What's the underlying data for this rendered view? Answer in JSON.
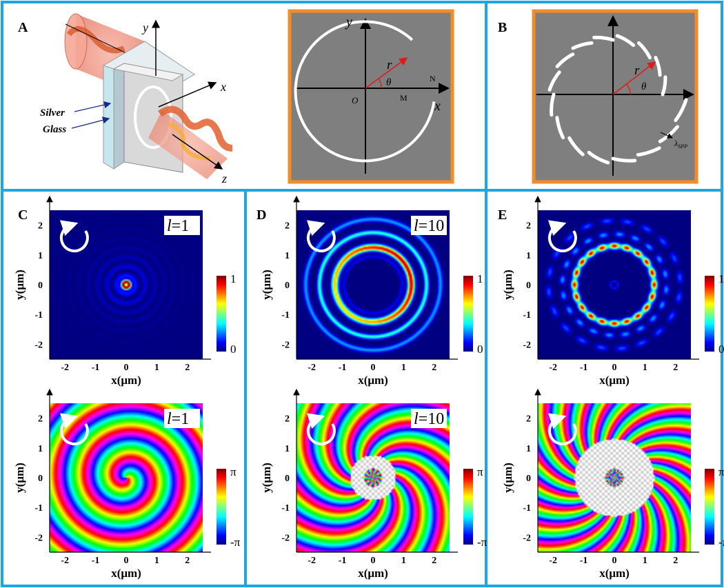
{
  "panels": {
    "A": {
      "label": "A",
      "schematic": {
        "axis_labels": {
          "x": "x",
          "y": "y",
          "z": "z"
        },
        "layer_labels": [
          "Silver",
          "Glass"
        ]
      },
      "inset": {
        "axis_labels": {
          "x": "x",
          "y": "y"
        },
        "origin": "O",
        "radius_label": "r",
        "angle_label": "θ",
        "points": [
          "M",
          "N"
        ]
      }
    },
    "B": {
      "label": "B",
      "radius_label": "r",
      "angle_label": "θ",
      "period_label": "λ",
      "period_sub": "SPP"
    },
    "C": {
      "label": "C",
      "top_tag": "l",
      "top_tag_value": "=1",
      "bottom_tag": "l",
      "bottom_tag_value": "=1"
    },
    "D": {
      "label": "D",
      "top_tag": "l",
      "top_tag_value": "=10",
      "bottom_tag": "l",
      "bottom_tag_value": "=10"
    },
    "E": {
      "label": "E"
    }
  },
  "axes": {
    "xlabel": "x(μm)",
    "ylabel": "y(μm)",
    "ticks": [
      "-2",
      "-1",
      "0",
      "1",
      "2"
    ]
  },
  "colorbars": {
    "intensity": {
      "max": "1",
      "min": "0"
    },
    "phase": {
      "max": "π",
      "min": "-π"
    }
  },
  "chart_data": [
    {
      "type": "heatmap",
      "panel": "C",
      "quantity": "intensity",
      "l": 1,
      "xlim": [
        -2.5,
        2.5
      ],
      "ylim": [
        -2.5,
        2.5
      ],
      "clim": [
        0,
        1
      ],
      "main_ring_radius": 0.1
    },
    {
      "type": "heatmap",
      "panel": "D",
      "quantity": "intensity",
      "l": 10,
      "xlim": [
        -2.5,
        2.5
      ],
      "ylim": [
        -2.5,
        2.5
      ],
      "clim": [
        0,
        1
      ],
      "main_ring_radius": 1.25
    },
    {
      "type": "heatmap",
      "panel": "E",
      "quantity": "intensity",
      "xlim": [
        -2.5,
        2.5
      ],
      "ylim": [
        -2.5,
        2.5
      ],
      "clim": [
        0,
        1
      ],
      "main_ring_radius": 1.3
    },
    {
      "type": "heatmap",
      "panel": "C",
      "quantity": "phase",
      "l": 1,
      "xlim": [
        -2.5,
        2.5
      ],
      "ylim": [
        -2.5,
        2.5
      ],
      "clim": [
        "-π",
        "π"
      ],
      "masked_annulus": null
    },
    {
      "type": "heatmap",
      "panel": "D",
      "quantity": "phase",
      "l": 10,
      "xlim": [
        -2.5,
        2.5
      ],
      "ylim": [
        -2.5,
        2.5
      ],
      "clim": [
        "-π",
        "π"
      ],
      "masked_annulus": [
        0.3,
        0.75
      ]
    },
    {
      "type": "heatmap",
      "panel": "E",
      "quantity": "phase",
      "xlim": [
        -2.5,
        2.5
      ],
      "ylim": [
        -2.5,
        2.5
      ],
      "clim": [
        "-π",
        "π"
      ],
      "masked_annulus": [
        0.3,
        1.3
      ]
    }
  ],
  "colors": {
    "frame": "#1ea6e0",
    "inset_border": "#f28c28",
    "inset_fill": "#7f7f7f",
    "colormap": [
      "#00007f",
      "#0000ff",
      "#007fff",
      "#00ffff",
      "#7fff7f",
      "#ffff00",
      "#ff7f00",
      "#ff0000",
      "#7f0000"
    ]
  }
}
